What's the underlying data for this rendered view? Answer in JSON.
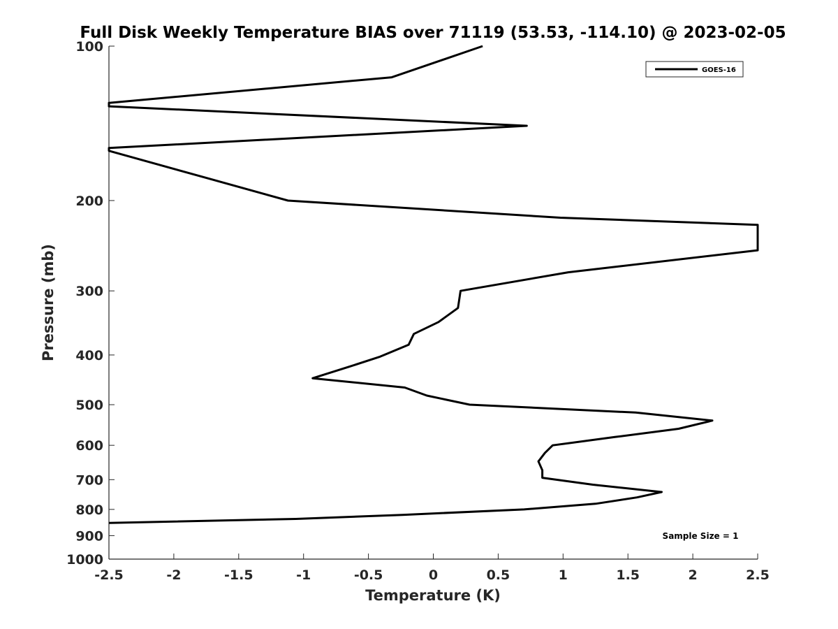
{
  "chart_data": {
    "type": "line",
    "title": "Full Disk Weekly Temperature BIAS over 71119 (53.53, -114.10) @ 2023-02-05",
    "xlabel": "Temperature (K)",
    "ylabel": "Pressure (mb)",
    "xlim": [
      -2.5,
      2.5
    ],
    "ylim": [
      1000,
      100
    ],
    "y_scale": "log",
    "grid": false,
    "legend_position": "top-right",
    "x_ticks": [
      -2.5,
      -2,
      -1.5,
      -1,
      -0.5,
      0,
      0.5,
      1,
      1.5,
      2,
      2.5
    ],
    "x_tick_labels": [
      "-2.5",
      "-2",
      "-1.5",
      "-1",
      "-0.5",
      "0",
      "0.5",
      "1",
      "1.5",
      "2",
      "2.5"
    ],
    "y_ticks": [
      100,
      200,
      300,
      400,
      500,
      600,
      700,
      800,
      900,
      1000
    ],
    "y_tick_labels": [
      "100",
      "200",
      "300",
      "400",
      "500",
      "600",
      "700",
      "800",
      "900",
      "1000"
    ],
    "annotation": "Sample Size = 1",
    "series": [
      {
        "name": "GOES-16",
        "color": "#000000",
        "points": [
          {
            "x": 0.38,
            "y": 100
          },
          {
            "x": -0.32,
            "y": 115
          },
          {
            "x": -2.5,
            "y": 129
          },
          {
            "x": -2.5,
            "y": 131
          },
          {
            "x": 0.72,
            "y": 143
          },
          {
            "x": -2.5,
            "y": 158
          },
          {
            "x": -2.5,
            "y": 160
          },
          {
            "x": -1.12,
            "y": 200
          },
          {
            "x": 0.98,
            "y": 216
          },
          {
            "x": 2.5,
            "y": 223
          },
          {
            "x": 2.5,
            "y": 250
          },
          {
            "x": 1.04,
            "y": 276
          },
          {
            "x": 0.21,
            "y": 300
          },
          {
            "x": 0.19,
            "y": 324
          },
          {
            "x": 0.04,
            "y": 345
          },
          {
            "x": -0.15,
            "y": 364
          },
          {
            "x": -0.19,
            "y": 382
          },
          {
            "x": -0.41,
            "y": 403
          },
          {
            "x": -0.64,
            "y": 421
          },
          {
            "x": -0.93,
            "y": 444
          },
          {
            "x": -0.22,
            "y": 463
          },
          {
            "x": -0.05,
            "y": 480
          },
          {
            "x": 0.28,
            "y": 500
          },
          {
            "x": 1.56,
            "y": 518
          },
          {
            "x": 2.15,
            "y": 537
          },
          {
            "x": 1.89,
            "y": 557
          },
          {
            "x": 1.4,
            "y": 578
          },
          {
            "x": 0.92,
            "y": 600
          },
          {
            "x": 0.86,
            "y": 621
          },
          {
            "x": 0.81,
            "y": 645
          },
          {
            "x": 0.84,
            "y": 671
          },
          {
            "x": 0.84,
            "y": 694
          },
          {
            "x": 1.23,
            "y": 716
          },
          {
            "x": 1.76,
            "y": 740
          },
          {
            "x": 1.57,
            "y": 758
          },
          {
            "x": 1.25,
            "y": 780
          },
          {
            "x": 0.7,
            "y": 800
          },
          {
            "x": -0.24,
            "y": 820
          },
          {
            "x": -1.06,
            "y": 835
          },
          {
            "x": -2.5,
            "y": 850
          }
        ]
      }
    ]
  }
}
